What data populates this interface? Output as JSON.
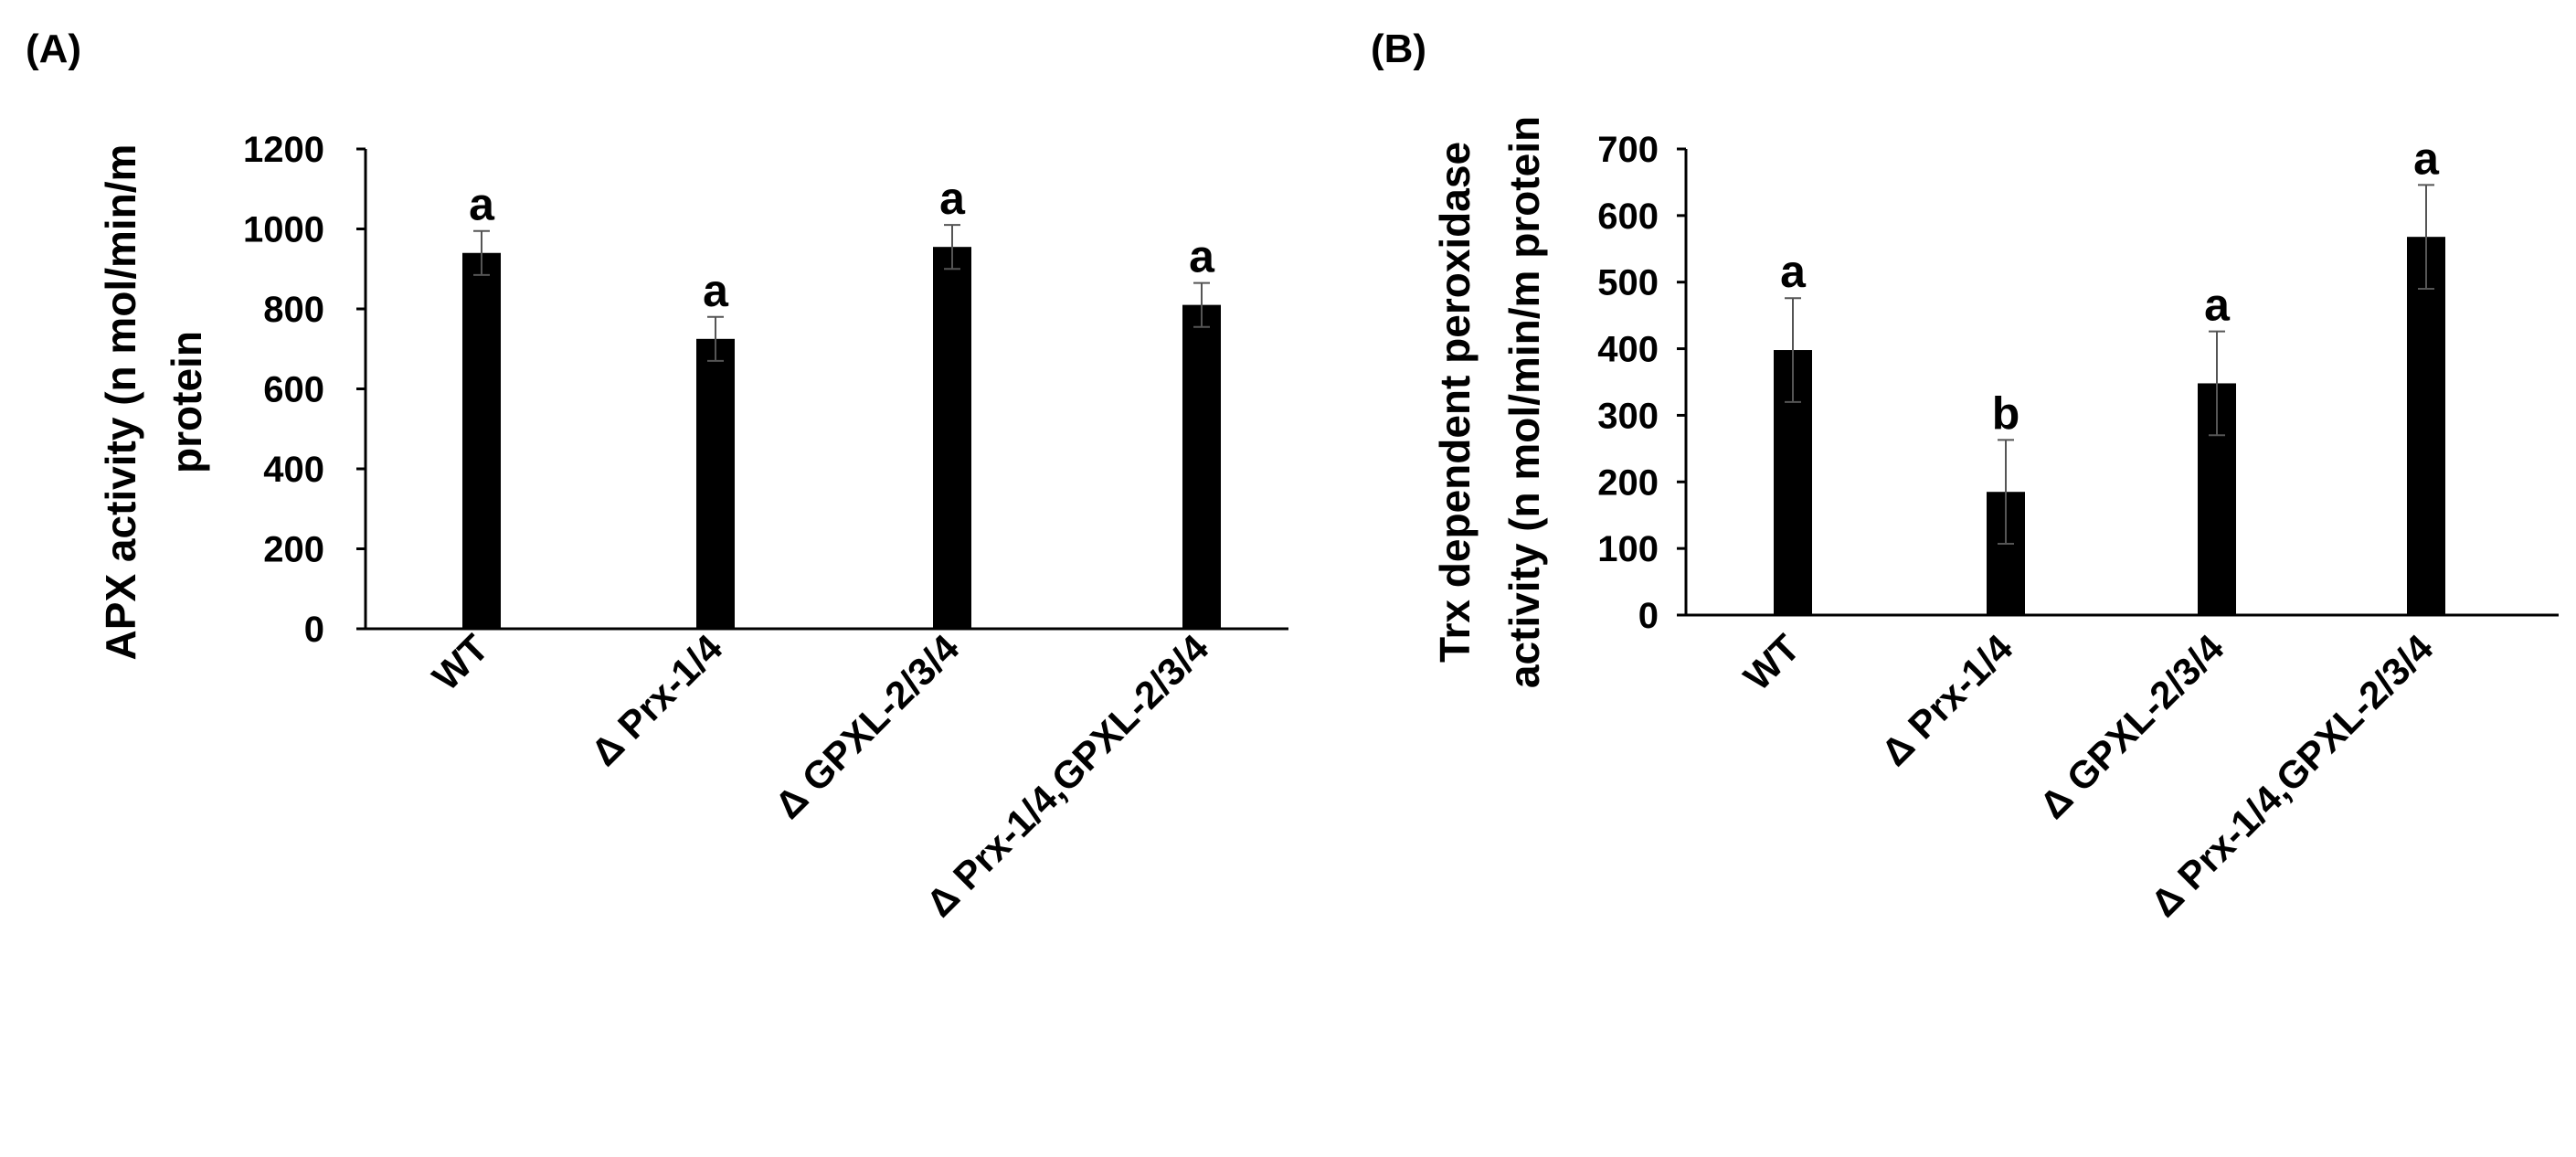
{
  "chart_data": [
    {
      "panel": "(A)",
      "type": "bar",
      "title": "",
      "xlabel": "",
      "ylabel_lines": [
        "APX activity (n mol/min/m",
        "protein"
      ],
      "categories": [
        "WT",
        "Δ Prx-1/4",
        "Δ GPXL-2/3/4",
        "Δ Prx-1/4,GPXL-2/3/4"
      ],
      "values": [
        940,
        725,
        955,
        810
      ],
      "errors": [
        55,
        55,
        55,
        55
      ],
      "significance": [
        "a",
        "a",
        "a",
        "a"
      ],
      "ylim": [
        0,
        1200
      ],
      "yticks": [
        0,
        200,
        400,
        600,
        800,
        1000,
        1200
      ],
      "bar_color": "#000000",
      "grid": false
    },
    {
      "panel": "(B)",
      "type": "bar",
      "title": "",
      "xlabel": "",
      "ylabel_lines": [
        "Trx dependent peroxidase",
        "activity (n mol/min/m protein"
      ],
      "categories": [
        "WT",
        "Δ Prx-1/4",
        "Δ GPXL-2/3/4",
        "Δ Prx-1/4,GPXL-2/3/4"
      ],
      "values": [
        398,
        185,
        348,
        568
      ],
      "errors": [
        78,
        78,
        78,
        78
      ],
      "significance": [
        "a",
        "b",
        "a",
        "a"
      ],
      "ylim": [
        0,
        700
      ],
      "yticks": [
        0,
        100,
        200,
        300,
        400,
        500,
        600,
        700
      ],
      "bar_color": "#000000",
      "grid": false
    }
  ]
}
